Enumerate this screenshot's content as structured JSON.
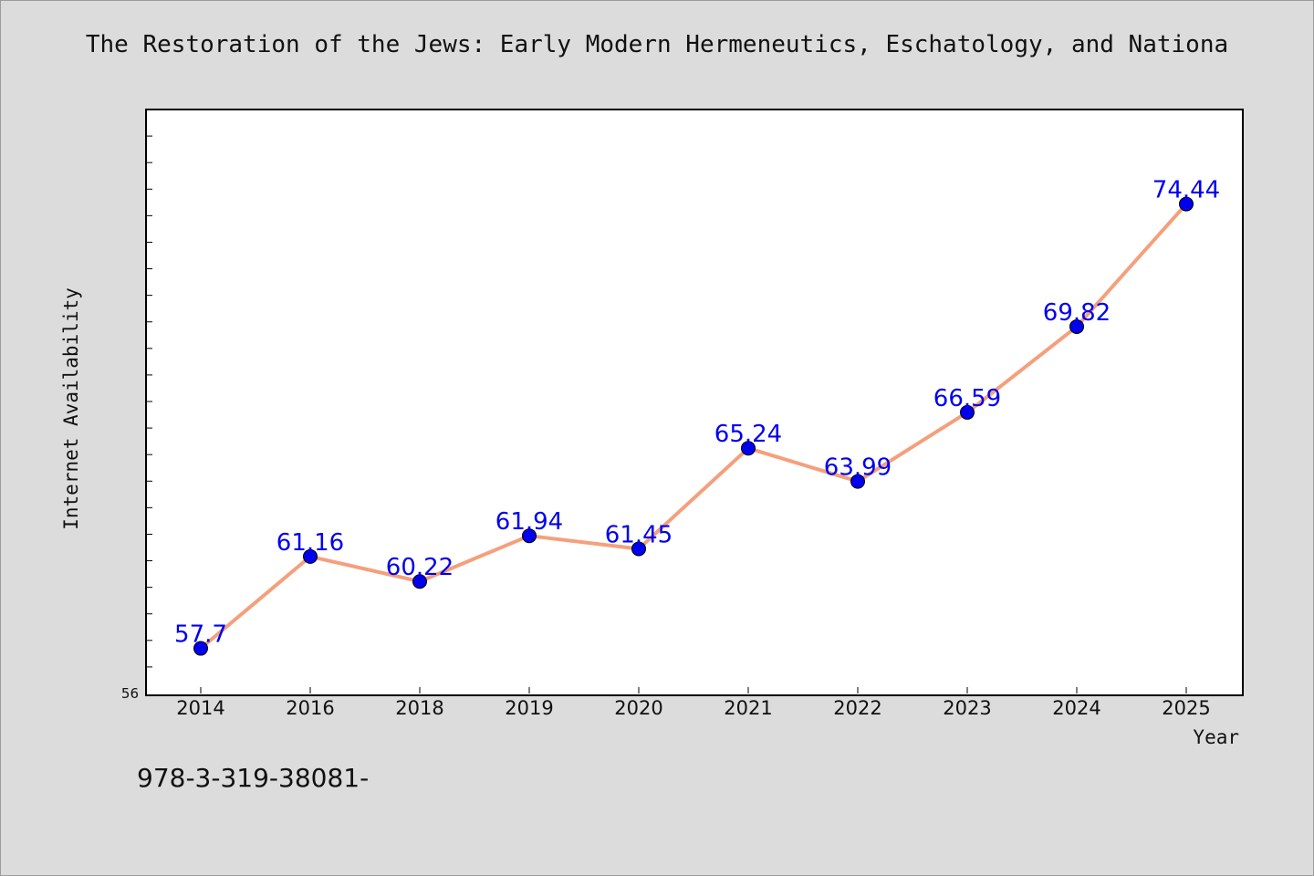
{
  "chart_data": {
    "type": "line",
    "title": "The Restoration of the Jews: Early Modern Hermeneutics, Eschatology, and Nationa",
    "xlabel": "Year",
    "ylabel": "Internet Availability",
    "categories": [
      "2014",
      "2016",
      "2018",
      "2019",
      "2020",
      "2021",
      "2022",
      "2023",
      "2024",
      "2025"
    ],
    "series": [
      {
        "values": [
          57.7,
          61.16,
          60.22,
          61.94,
          61.45,
          65.24,
          63.99,
          66.59,
          69.82,
          74.44
        ],
        "data_labels": [
          "57.7",
          "61.16",
          "60.22",
          "61.94",
          "61.45",
          "65.24",
          "63.99",
          "66.59",
          "69.82",
          "74.44"
        ]
      }
    ],
    "ylim": [
      56,
      78
    ],
    "y_tick_labels": [
      "56"
    ],
    "grid": false,
    "legend": "none",
    "colors": {
      "line": "#f4a07c",
      "marker": "#0000ee",
      "data_label": "#0000ee"
    }
  },
  "footer": {
    "text": "978-3-319-38081-"
  }
}
